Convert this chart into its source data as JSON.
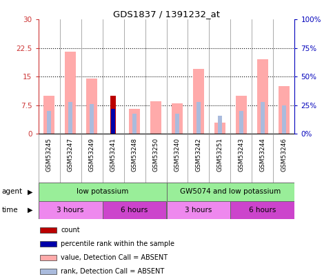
{
  "title": "GDS1837 / 1391232_at",
  "samples": [
    "GSM53245",
    "GSM53247",
    "GSM53249",
    "GSM53241",
    "GSM53248",
    "GSM53250",
    "GSM53240",
    "GSM53242",
    "GSM53251",
    "GSM53243",
    "GSM53244",
    "GSM53246"
  ],
  "value_absent": [
    10.0,
    21.5,
    14.5,
    0.0,
    6.5,
    8.5,
    8.0,
    17.0,
    3.0,
    10.0,
    19.5,
    12.5
  ],
  "rank_absent_pct": [
    20.0,
    28.0,
    26.0,
    0.0,
    18.0,
    0.0,
    18.0,
    28.0,
    16.0,
    20.0,
    28.0,
    25.0
  ],
  "count_val": [
    0,
    0,
    0,
    10.0,
    0,
    0,
    0,
    0,
    0,
    0,
    0,
    0
  ],
  "percentile_val_pct": [
    0,
    0,
    0,
    22.0,
    0,
    0,
    0,
    0,
    0,
    0,
    0,
    0
  ],
  "ylim_left": [
    0,
    30
  ],
  "ylim_right": [
    0,
    100
  ],
  "yticks_left": [
    0,
    7.5,
    15,
    22.5,
    30
  ],
  "yticks_right": [
    0,
    25,
    50,
    75,
    100
  ],
  "ytick_labels_left": [
    "0",
    "7.5",
    "15",
    "22.5",
    "30"
  ],
  "ytick_labels_right": [
    "0%",
    "25%",
    "50%",
    "75%",
    "100%"
  ],
  "color_value_absent": "#ffaaaa",
  "color_rank_absent": "#aabbdd",
  "color_count": "#bb0000",
  "color_percentile": "#0000aa",
  "agent_labels": [
    "low potassium",
    "GW5074 and low potassium"
  ],
  "agent_col_ranges": [
    [
      0,
      6
    ],
    [
      6,
      12
    ]
  ],
  "agent_color": "#99ee99",
  "time_labels": [
    "3 hours",
    "6 hours",
    "3 hours",
    "6 hours"
  ],
  "time_col_ranges": [
    [
      0,
      3
    ],
    [
      3,
      6
    ],
    [
      6,
      9
    ],
    [
      9,
      12
    ]
  ],
  "time_colors": [
    "#ee88ee",
    "#cc44cc",
    "#ee88ee",
    "#cc44cc"
  ],
  "bar_width": 0.5,
  "rank_bar_width": 0.18,
  "left_tick_color": "#cc3333",
  "right_tick_color": "#0000bb",
  "legend_items": [
    {
      "color": "#bb0000",
      "label": "count"
    },
    {
      "color": "#0000aa",
      "label": "percentile rank within the sample"
    },
    {
      "color": "#ffaaaa",
      "label": "value, Detection Call = ABSENT"
    },
    {
      "color": "#aabbdd",
      "label": "rank, Detection Call = ABSENT"
    }
  ]
}
